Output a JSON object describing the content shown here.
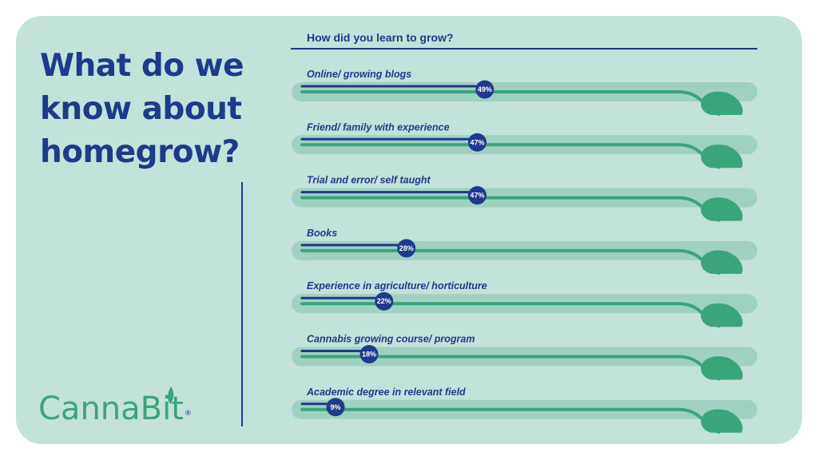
{
  "headline": "What do we know about homegrow?",
  "brand": {
    "logo_text": "CannaBit",
    "registered_mark": "®"
  },
  "colors": {
    "navy": "#1e3a8a",
    "green": "#3aa57a",
    "track": "#9fd1c1",
    "panel": "#c3e2d9"
  },
  "chart_data": {
    "type": "bar",
    "orientation": "horizontal",
    "title": "How did you learn to grow?",
    "categories": [
      "Online/ growing blogs",
      "Friend/ family with experience",
      "Trial and error/ self taught",
      "Books",
      "Experience in agriculture/ horticulture",
      "Cannabis growing course/ program",
      "Academic degree in relevant field"
    ],
    "values": [
      49,
      47,
      47,
      28,
      22,
      18,
      9
    ],
    "value_labels": [
      "49%",
      "47%",
      "47%",
      "28%",
      "22%",
      "18%",
      "9%"
    ],
    "unit": "%",
    "xlim": [
      0,
      100
    ],
    "grid": false,
    "legend": "none"
  }
}
